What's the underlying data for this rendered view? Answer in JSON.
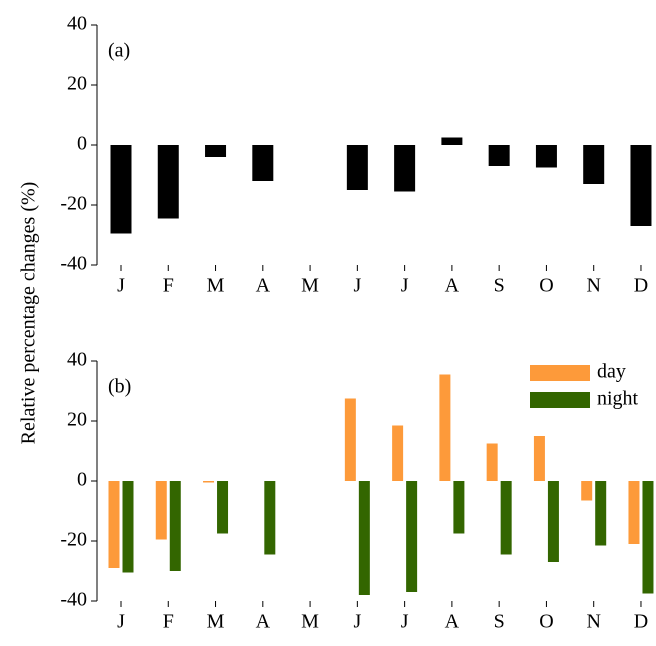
{
  "chart_data": [
    {
      "type": "bar",
      "annotation": "(a)",
      "ylabel": "Relative percentage changes (%)",
      "categories": [
        "J",
        "F",
        "M",
        "A",
        "M",
        "J",
        "J",
        "A",
        "S",
        "O",
        "N",
        "D"
      ],
      "values": [
        -29.5,
        -24.5,
        -4,
        -12,
        null,
        -15,
        -15.5,
        2.5,
        -7,
        -7.5,
        -13,
        -27
      ],
      "color": "#000000",
      "ylim": [
        -40,
        40
      ],
      "yticks": [
        -40,
        -20,
        0,
        20,
        40
      ]
    },
    {
      "type": "grouped-bar",
      "annotation": "(b)",
      "categories": [
        "J",
        "F",
        "M",
        "A",
        "M",
        "J",
        "J",
        "A",
        "S",
        "O",
        "N",
        "D"
      ],
      "series": [
        {
          "name": "day",
          "color": "#fd9a3a",
          "values": [
            -29,
            -19.5,
            -0.5,
            null,
            null,
            27.5,
            18.5,
            35.5,
            12.5,
            15,
            -6.5,
            -21
          ]
        },
        {
          "name": "night",
          "color": "#336600",
          "values": [
            -30.5,
            -30,
            -17.5,
            -24.5,
            null,
            -38,
            -37,
            -17.5,
            -24.5,
            -27,
            -21.5,
            -37.5
          ]
        }
      ],
      "ylim": [
        -40,
        40
      ],
      "yticks": [
        -40,
        -20,
        0,
        20,
        40
      ],
      "legend": "upper right"
    }
  ]
}
